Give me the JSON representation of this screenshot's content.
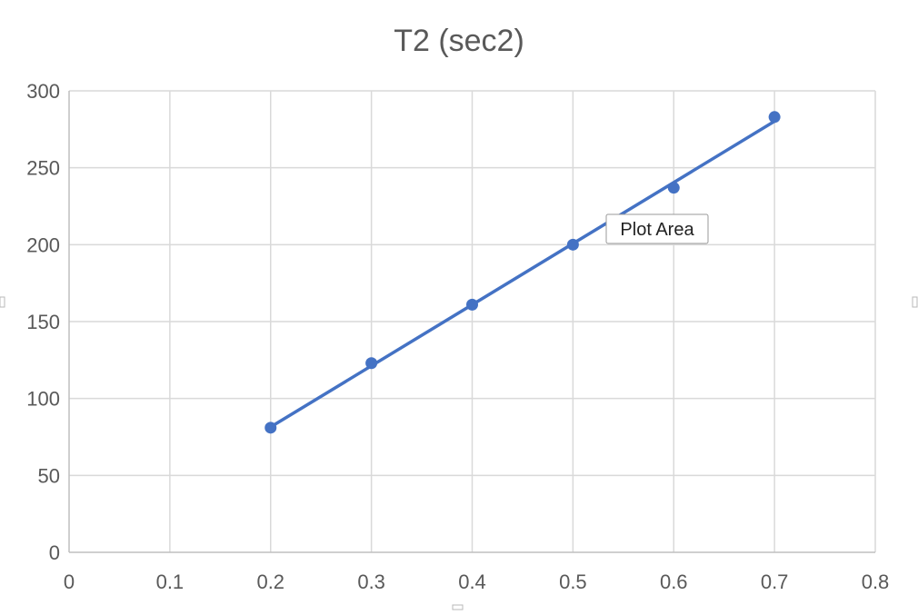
{
  "chart_data": {
    "type": "scatter",
    "title": "T2 (sec2)",
    "xlabel": "",
    "ylabel": "",
    "xlim": [
      0,
      0.8
    ],
    "ylim": [
      0,
      300
    ],
    "x_ticks": [
      0,
      0.1,
      0.2,
      0.3,
      0.4,
      0.5,
      0.6,
      0.7,
      0.8
    ],
    "y_ticks": [
      0,
      50,
      100,
      150,
      200,
      250,
      300
    ],
    "x_tick_labels": [
      "0",
      "0.1",
      "0.2",
      "0.3",
      "0.4",
      "0.5",
      "0.6",
      "0.7",
      "0.8"
    ],
    "y_tick_labels": [
      "0",
      "50",
      "100",
      "150",
      "200",
      "250",
      "300"
    ],
    "grid": true,
    "legend": "none",
    "series": [
      {
        "x": [
          0.2,
          0.3,
          0.4,
          0.5,
          0.6,
          0.7
        ],
        "y": [
          81,
          123,
          161,
          200,
          237,
          283
        ],
        "color": "#4472C4",
        "trendline": "linear"
      }
    ]
  },
  "tooltip": {
    "label": "Plot Area"
  }
}
